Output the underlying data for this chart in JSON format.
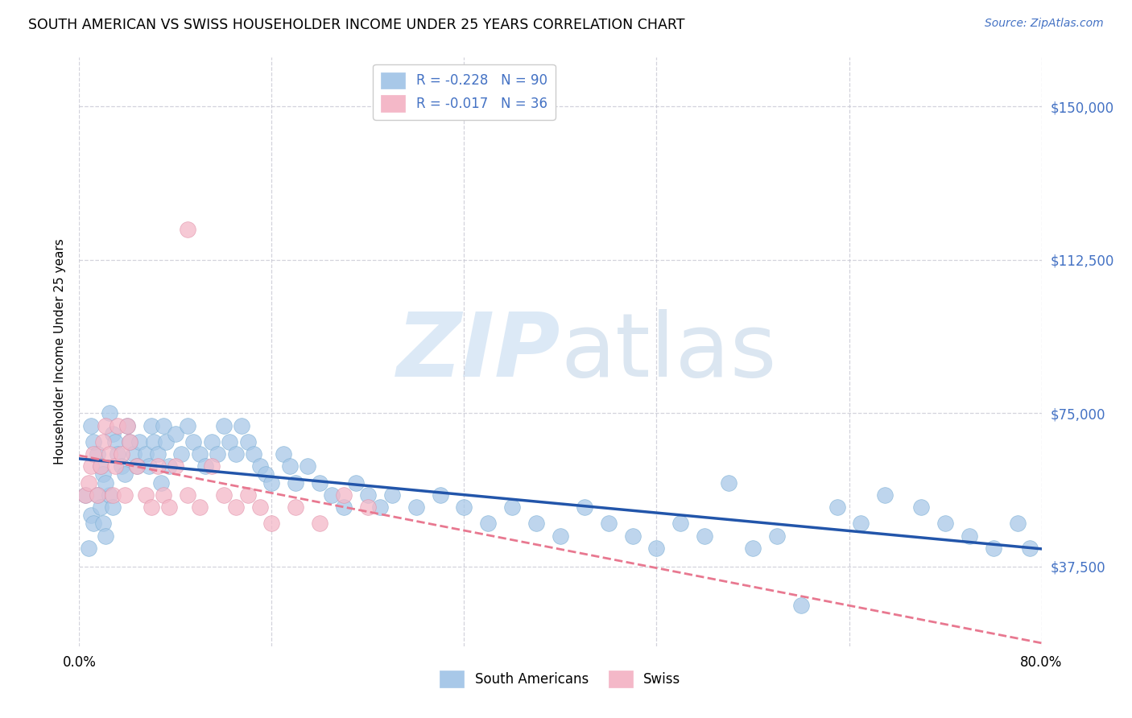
{
  "title": "SOUTH AMERICAN VS SWISS HOUSEHOLDER INCOME UNDER 25 YEARS CORRELATION CHART",
  "source": "Source: ZipAtlas.com",
  "ylabel": "Householder Income Under 25 years",
  "ytick_labels": [
    "$37,500",
    "$75,000",
    "$112,500",
    "$150,000"
  ],
  "ytick_values": [
    37500,
    75000,
    112500,
    150000
  ],
  "ylim": [
    18000,
    162000
  ],
  "xlim": [
    0.0,
    0.8
  ],
  "watermark_zip": "ZIP",
  "watermark_atlas": "atlas",
  "south_american_color": "#a8c8e8",
  "swiss_color": "#f4b8c8",
  "south_american_line_color": "#2255aa",
  "swiss_line_color": "#e87890",
  "background_color": "#ffffff",
  "grid_color": "#c8c8d4",
  "title_fontsize": 12.5,
  "source_fontsize": 10,
  "axis_label_fontsize": 11,
  "tick_fontsize": 12,
  "legend_fontsize": 12,
  "sa_label": "R = -0.228   N = 90",
  "sw_label": "R = -0.017   N = 36",
  "sa_bottom_label": "South Americans",
  "sw_bottom_label": "Swiss",
  "sa_scatter_x": [
    0.005,
    0.008,
    0.01,
    0.012,
    0.015,
    0.018,
    0.02,
    0.022,
    0.025,
    0.028,
    0.01,
    0.012,
    0.015,
    0.018,
    0.02,
    0.022,
    0.025,
    0.028,
    0.03,
    0.032,
    0.035,
    0.038,
    0.04,
    0.042,
    0.045,
    0.048,
    0.05,
    0.055,
    0.058,
    0.06,
    0.062,
    0.065,
    0.068,
    0.07,
    0.072,
    0.075,
    0.08,
    0.085,
    0.09,
    0.095,
    0.1,
    0.105,
    0.11,
    0.115,
    0.12,
    0.125,
    0.13,
    0.135,
    0.14,
    0.145,
    0.15,
    0.155,
    0.16,
    0.17,
    0.175,
    0.18,
    0.19,
    0.2,
    0.21,
    0.22,
    0.23,
    0.24,
    0.25,
    0.26,
    0.28,
    0.3,
    0.32,
    0.34,
    0.36,
    0.38,
    0.4,
    0.42,
    0.44,
    0.46,
    0.48,
    0.5,
    0.52,
    0.54,
    0.56,
    0.58,
    0.6,
    0.63,
    0.65,
    0.67,
    0.7,
    0.72,
    0.74,
    0.76,
    0.78,
    0.79
  ],
  "sa_scatter_y": [
    55000,
    42000,
    50000,
    48000,
    55000,
    52000,
    48000,
    45000,
    55000,
    52000,
    72000,
    68000,
    65000,
    62000,
    60000,
    58000,
    75000,
    70000,
    68000,
    65000,
    62000,
    60000,
    72000,
    68000,
    65000,
    62000,
    68000,
    65000,
    62000,
    72000,
    68000,
    65000,
    58000,
    72000,
    68000,
    62000,
    70000,
    65000,
    72000,
    68000,
    65000,
    62000,
    68000,
    65000,
    72000,
    68000,
    65000,
    72000,
    68000,
    65000,
    62000,
    60000,
    58000,
    65000,
    62000,
    58000,
    62000,
    58000,
    55000,
    52000,
    58000,
    55000,
    52000,
    55000,
    52000,
    55000,
    52000,
    48000,
    52000,
    48000,
    45000,
    52000,
    48000,
    45000,
    42000,
    48000,
    45000,
    58000,
    42000,
    45000,
    28000,
    52000,
    48000,
    55000,
    52000,
    48000,
    45000,
    42000,
    48000,
    42000
  ],
  "sw_scatter_x": [
    0.005,
    0.008,
    0.01,
    0.012,
    0.015,
    0.018,
    0.02,
    0.022,
    0.025,
    0.028,
    0.03,
    0.032,
    0.035,
    0.038,
    0.04,
    0.042,
    0.048,
    0.055,
    0.06,
    0.065,
    0.07,
    0.075,
    0.08,
    0.09,
    0.1,
    0.11,
    0.12,
    0.13,
    0.14,
    0.15,
    0.16,
    0.18,
    0.2,
    0.22,
    0.24,
    0.09
  ],
  "sw_scatter_y": [
    55000,
    58000,
    62000,
    65000,
    55000,
    62000,
    68000,
    72000,
    65000,
    55000,
    62000,
    72000,
    65000,
    55000,
    72000,
    68000,
    62000,
    55000,
    52000,
    62000,
    55000,
    52000,
    62000,
    55000,
    52000,
    62000,
    55000,
    52000,
    55000,
    52000,
    48000,
    52000,
    48000,
    55000,
    52000,
    120000
  ]
}
